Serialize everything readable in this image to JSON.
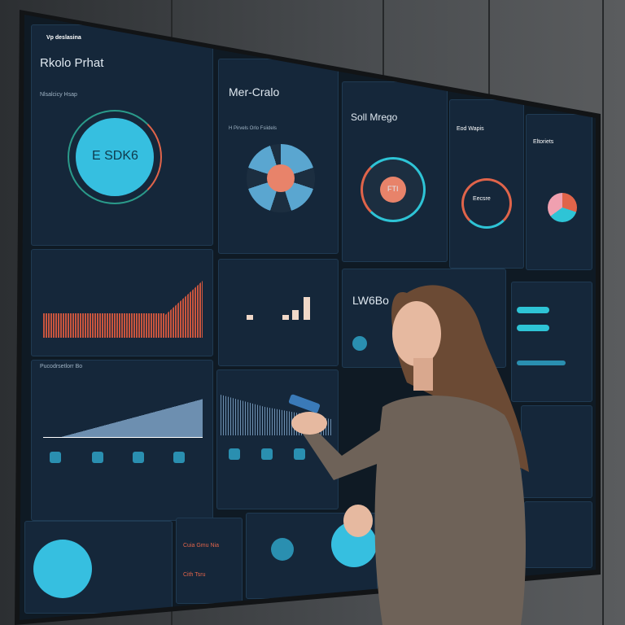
{
  "panels": {
    "p1": {
      "brand": "Vp deslasina",
      "title": "Rkolo Prhat",
      "subtitle": "Nlsalcicy Hsap",
      "center": "E SDK6"
    },
    "p2": {
      "title": "Mer-Cralo",
      "subtitle": "H Pirvels Orlo Fsiidels"
    },
    "p3": {
      "title": "Soll Mrego",
      "center": "FTI"
    },
    "p4": {
      "title": "Eod Wapis",
      "center": "Eecsre"
    },
    "p5": {
      "title": "Eltoriets"
    },
    "p6": {
      "label": "LW6Bo"
    },
    "p7": {
      "title": "Pucodrsetlorr Bo"
    },
    "p8": {
      "title": "Cuia Gmu Nia",
      "sub": "Cith Tsru"
    }
  },
  "colors": {
    "accent": "#2ec4d6",
    "alert": "#e0644a",
    "panel": "#15273a",
    "hair": "#6b4a34",
    "sweater": "#6e6258"
  }
}
